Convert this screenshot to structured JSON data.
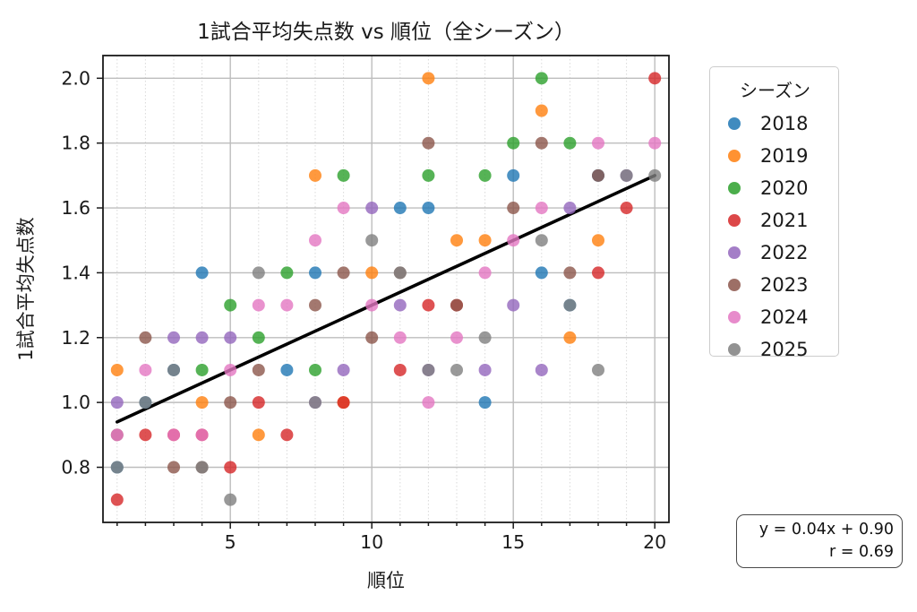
{
  "title": "1試合平均失点数 vs 順位（全シーズン）",
  "legend": {
    "title": "シーズン",
    "entries": [
      {
        "label": "2018",
        "color": "#1f77b4"
      },
      {
        "label": "2019",
        "color": "#ff7f0e"
      },
      {
        "label": "2020",
        "color": "#2ca02c"
      },
      {
        "label": "2021",
        "color": "#d62728"
      },
      {
        "label": "2022",
        "color": "#9467bd"
      },
      {
        "label": "2023",
        "color": "#8c564b"
      },
      {
        "label": "2024",
        "color": "#e377c2"
      },
      {
        "label": "2025",
        "color": "#7f7f7f"
      }
    ]
  },
  "annotation": {
    "line1": "y = 0.04x + 0.90",
    "line2": "r = 0.69"
  },
  "chart_data": {
    "type": "scatter",
    "title": "1試合平均失点数 vs 順位（全シーズン）",
    "xlabel": "順位",
    "ylabel": "1試合平均失点数",
    "xlim": [
      0.5,
      20.5
    ],
    "ylim": [
      0.63,
      2.07
    ],
    "x_major_ticks": [
      5,
      10,
      15,
      20
    ],
    "x_minor_step": 1,
    "x_minor_range": [
      1,
      20
    ],
    "y_ticks": [
      0.8,
      1.0,
      1.2,
      1.4,
      1.6,
      1.8,
      2.0
    ],
    "grid": true,
    "legend_position": "right",
    "point_opacity": 0.8,
    "regression": {
      "slope": 0.04,
      "intercept": 0.9,
      "r": 0.69,
      "x_range": [
        1,
        20
      ],
      "color": "#000000"
    },
    "series": [
      {
        "name": "2018",
        "color": "#1f77b4",
        "points": [
          [
            1,
            0.8
          ],
          [
            2,
            1.0
          ],
          [
            3,
            1.1
          ],
          [
            4,
            1.4
          ],
          [
            7,
            1.1
          ],
          [
            8,
            1.4
          ],
          [
            11,
            1.6
          ],
          [
            12,
            1.6
          ],
          [
            14,
            1.0
          ],
          [
            15,
            1.7
          ],
          [
            16,
            1.4
          ],
          [
            17,
            1.3
          ],
          [
            18,
            1.7
          ]
        ]
      },
      {
        "name": "2019",
        "color": "#ff7f0e",
        "points": [
          [
            1,
            1.1
          ],
          [
            4,
            1.0
          ],
          [
            6,
            0.9
          ],
          [
            8,
            1.7
          ],
          [
            9,
            1.0
          ],
          [
            10,
            1.4
          ],
          [
            12,
            2.0
          ],
          [
            13,
            1.5
          ],
          [
            14,
            1.5
          ],
          [
            16,
            1.9
          ],
          [
            17,
            1.2
          ],
          [
            18,
            1.5
          ]
        ]
      },
      {
        "name": "2020",
        "color": "#2ca02c",
        "points": [
          [
            4,
            1.1
          ],
          [
            5,
            1.3
          ],
          [
            6,
            1.2
          ],
          [
            7,
            1.4
          ],
          [
            8,
            1.1
          ],
          [
            9,
            1.7
          ],
          [
            12,
            1.7
          ],
          [
            14,
            1.7
          ],
          [
            15,
            1.8
          ],
          [
            16,
            2.0
          ],
          [
            17,
            1.8
          ]
        ]
      },
      {
        "name": "2021",
        "color": "#d62728",
        "points": [
          [
            1,
            0.7
          ],
          [
            2,
            0.9
          ],
          [
            3,
            0.9
          ],
          [
            4,
            0.9
          ],
          [
            5,
            0.8
          ],
          [
            6,
            1.0
          ],
          [
            7,
            0.9
          ],
          [
            9,
            1.0
          ],
          [
            11,
            1.1
          ],
          [
            12,
            1.3
          ],
          [
            13,
            1.3
          ],
          [
            18,
            1.4
          ],
          [
            19,
            1.6
          ],
          [
            20,
            2.0
          ]
        ]
      },
      {
        "name": "2022",
        "color": "#9467bd",
        "points": [
          [
            1,
            1.0
          ],
          [
            3,
            1.2
          ],
          [
            4,
            1.2
          ],
          [
            5,
            1.2
          ],
          [
            8,
            1.0
          ],
          [
            9,
            1.1
          ],
          [
            10,
            1.6
          ],
          [
            11,
            1.3
          ],
          [
            12,
            1.1
          ],
          [
            14,
            1.1
          ],
          [
            15,
            1.3
          ],
          [
            16,
            1.1
          ],
          [
            17,
            1.6
          ],
          [
            19,
            1.7
          ]
        ]
      },
      {
        "name": "2023",
        "color": "#8c564b",
        "points": [
          [
            1,
            0.9
          ],
          [
            2,
            1.2
          ],
          [
            3,
            0.8
          ],
          [
            4,
            0.8
          ],
          [
            5,
            1.0
          ],
          [
            6,
            1.1
          ],
          [
            8,
            1.3
          ],
          [
            9,
            1.4
          ],
          [
            10,
            1.2
          ],
          [
            11,
            1.4
          ],
          [
            12,
            1.8
          ],
          [
            13,
            1.3
          ],
          [
            15,
            1.6
          ],
          [
            16,
            1.8
          ],
          [
            17,
            1.4
          ],
          [
            18,
            1.7
          ]
        ]
      },
      {
        "name": "2024",
        "color": "#e377c2",
        "points": [
          [
            1,
            0.9
          ],
          [
            2,
            1.1
          ],
          [
            3,
            0.9
          ],
          [
            4,
            0.9
          ],
          [
            5,
            1.1
          ],
          [
            6,
            1.3
          ],
          [
            7,
            1.3
          ],
          [
            8,
            1.5
          ],
          [
            9,
            1.6
          ],
          [
            10,
            1.3
          ],
          [
            11,
            1.2
          ],
          [
            12,
            1.0
          ],
          [
            13,
            1.2
          ],
          [
            14,
            1.4
          ],
          [
            15,
            1.5
          ],
          [
            16,
            1.6
          ],
          [
            18,
            1.8
          ],
          [
            20,
            1.8
          ]
        ]
      },
      {
        "name": "2025",
        "color": "#7f7f7f",
        "points": [
          [
            1,
            0.8
          ],
          [
            2,
            1.0
          ],
          [
            3,
            1.1
          ],
          [
            4,
            0.8
          ],
          [
            5,
            0.7
          ],
          [
            6,
            1.4
          ],
          [
            8,
            1.0
          ],
          [
            10,
            1.5
          ],
          [
            11,
            1.4
          ],
          [
            12,
            1.1
          ],
          [
            13,
            1.1
          ],
          [
            14,
            1.2
          ],
          [
            16,
            1.5
          ],
          [
            17,
            1.3
          ],
          [
            18,
            1.1
          ],
          [
            19,
            1.7
          ],
          [
            20,
            1.7
          ]
        ]
      }
    ]
  }
}
